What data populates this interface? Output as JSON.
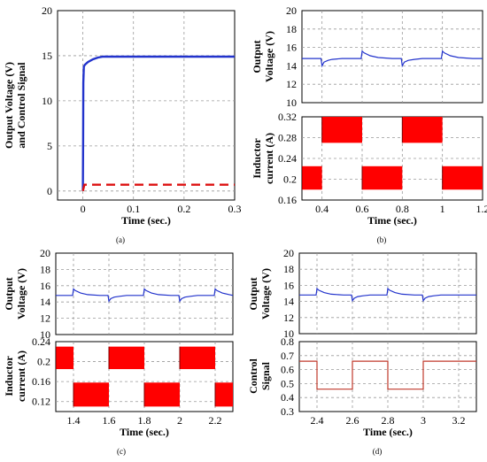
{
  "chart_data": [
    {
      "id": "a",
      "type": "line",
      "caption": "(a)",
      "xlabel": "Time (sec.)",
      "ylabel": "Output Voltage (V) and Control Signal",
      "xlim": [
        -0.05,
        0.3
      ],
      "ylim": [
        -1,
        20
      ],
      "xticks": [
        0,
        0.1,
        0.2,
        0.3
      ],
      "yticks": [
        0,
        5,
        10,
        15,
        20
      ],
      "grid": true,
      "series": [
        {
          "color": "#2233cc",
          "style": "solid",
          "x": [
            0,
            0.0005,
            0.001,
            0.002,
            0.004,
            0.006,
            0.01,
            0.02,
            0.03,
            0.04,
            0.3
          ],
          "y": [
            0,
            6,
            12,
            13.8,
            14.0,
            14.1,
            14.3,
            14.6,
            14.8,
            14.9,
            14.9
          ]
        },
        {
          "color": "#dd1111",
          "style": "dashed",
          "x": [
            0,
            0.003,
            0.3
          ],
          "y": [
            0,
            0.7,
            0.7
          ]
        }
      ]
    },
    {
      "id": "b-top",
      "type": "line",
      "ylabel": "Output Voltage (V)",
      "xlim": [
        0.3,
        1.2
      ],
      "ylim": [
        10,
        20
      ],
      "yticks": [
        10,
        12,
        14,
        16,
        18,
        20
      ],
      "xticks": [
        0.4,
        0.6,
        0.8,
        1.0,
        1.2
      ],
      "grid": true,
      "series": [
        {
          "color": "#2233cc",
          "x": [
            0.3,
            0.395,
            0.4,
            0.41,
            0.43,
            0.45,
            0.5,
            0.595,
            0.6,
            0.61,
            0.64,
            0.68,
            0.75,
            0.795,
            0.8,
            0.81,
            0.83,
            0.86,
            0.9,
            0.995,
            1.0,
            1.01,
            1.04,
            1.08,
            1.15,
            1.2
          ],
          "y": [
            14.8,
            14.8,
            14.0,
            14.4,
            14.6,
            14.7,
            14.8,
            14.8,
            15.6,
            15.4,
            15.1,
            14.9,
            14.8,
            14.8,
            14.0,
            14.4,
            14.6,
            14.7,
            14.8,
            14.8,
            15.6,
            15.4,
            15.1,
            14.9,
            14.8,
            14.8
          ]
        }
      ]
    },
    {
      "id": "b-bottom",
      "type": "area",
      "caption": "(b)",
      "xlabel": "Time (sec.)",
      "ylabel": "Inductor current (A)",
      "xlim": [
        0.3,
        1.2
      ],
      "ylim": [
        0.16,
        0.32
      ],
      "xticks": [
        0.4,
        0.6,
        0.8,
        1,
        1.2
      ],
      "yticks": [
        0.16,
        0.2,
        0.24,
        0.28,
        0.32
      ],
      "grid": true,
      "bands": [
        {
          "x0": 0.3,
          "x1": 0.4,
          "low": 0.18,
          "high": 0.225
        },
        {
          "x0": 0.4,
          "x1": 0.6,
          "low": 0.27,
          "high": 0.32
        },
        {
          "x0": 0.6,
          "x1": 0.8,
          "low": 0.18,
          "high": 0.225
        },
        {
          "x0": 0.8,
          "x1": 1.0,
          "low": 0.27,
          "high": 0.32
        },
        {
          "x0": 1.0,
          "x1": 1.2,
          "low": 0.18,
          "high": 0.225
        }
      ],
      "color": "#ff0000"
    },
    {
      "id": "c-top",
      "type": "line",
      "ylabel": "Output Voltage (V)",
      "xlim": [
        1.3,
        2.3
      ],
      "ylim": [
        10,
        20
      ],
      "yticks": [
        10,
        12,
        14,
        16,
        18,
        20
      ],
      "xticks": [
        1.4,
        1.6,
        1.8,
        2.0,
        2.2
      ],
      "grid": true,
      "series": [
        {
          "color": "#2233cc",
          "x": [
            1.3,
            1.395,
            1.4,
            1.41,
            1.44,
            1.48,
            1.55,
            1.595,
            1.6,
            1.61,
            1.63,
            1.66,
            1.7,
            1.795,
            1.8,
            1.81,
            1.84,
            1.88,
            1.95,
            1.995,
            2.0,
            2.01,
            2.03,
            2.06,
            2.1,
            2.195,
            2.2,
            2.21,
            2.24,
            2.28,
            2.3
          ],
          "y": [
            14.8,
            14.8,
            15.6,
            15.4,
            15.1,
            14.9,
            14.8,
            14.8,
            14.1,
            14.4,
            14.6,
            14.7,
            14.8,
            14.8,
            15.6,
            15.4,
            15.1,
            14.9,
            14.8,
            14.8,
            14.1,
            14.4,
            14.6,
            14.7,
            14.8,
            14.8,
            15.6,
            15.4,
            15.1,
            14.9,
            14.8
          ]
        }
      ]
    },
    {
      "id": "c-bottom",
      "type": "area",
      "caption": "(c)",
      "xlabel": "Time (sec.)",
      "ylabel": "Inductor current (A)",
      "xlim": [
        1.3,
        2.3
      ],
      "ylim": [
        0.1,
        0.24
      ],
      "xticks": [
        1.4,
        1.6,
        1.8,
        2,
        2.2
      ],
      "yticks": [
        0.12,
        0.16,
        0.2,
        0.24
      ],
      "grid": true,
      "bands": [
        {
          "x0": 1.3,
          "x1": 1.4,
          "low": 0.185,
          "high": 0.23
        },
        {
          "x0": 1.4,
          "x1": 1.6,
          "low": 0.11,
          "high": 0.158
        },
        {
          "x0": 1.6,
          "x1": 1.8,
          "low": 0.185,
          "high": 0.23
        },
        {
          "x0": 1.8,
          "x1": 2.0,
          "low": 0.11,
          "high": 0.158
        },
        {
          "x0": 2.0,
          "x1": 2.2,
          "low": 0.185,
          "high": 0.23
        },
        {
          "x0": 2.2,
          "x1": 2.3,
          "low": 0.11,
          "high": 0.158
        }
      ],
      "color": "#ff0000"
    },
    {
      "id": "d-top",
      "type": "line",
      "ylabel": "Output Voltage (V)",
      "xlim": [
        2.3,
        3.3
      ],
      "ylim": [
        10,
        20
      ],
      "yticks": [
        10,
        12,
        14,
        16,
        18,
        20
      ],
      "xticks": [
        2.4,
        2.6,
        2.8,
        3.0,
        3.2
      ],
      "grid": true,
      "series": [
        {
          "color": "#2233cc",
          "x": [
            2.3,
            2.395,
            2.4,
            2.41,
            2.44,
            2.48,
            2.55,
            2.595,
            2.6,
            2.61,
            2.63,
            2.66,
            2.7,
            2.795,
            2.8,
            2.81,
            2.84,
            2.88,
            2.95,
            2.995,
            3.0,
            3.01,
            3.03,
            3.06,
            3.1,
            3.3
          ],
          "y": [
            14.8,
            14.8,
            15.6,
            15.4,
            15.1,
            14.9,
            14.8,
            14.8,
            14.1,
            14.4,
            14.6,
            14.7,
            14.8,
            14.8,
            15.6,
            15.4,
            15.1,
            14.9,
            14.8,
            14.8,
            14.1,
            14.4,
            14.6,
            14.7,
            14.8,
            14.8
          ]
        }
      ]
    },
    {
      "id": "d-bottom",
      "type": "line",
      "caption": "(d)",
      "xlabel": "Time (sec.)",
      "ylabel": "Control Signal",
      "xlim": [
        2.3,
        3.3
      ],
      "ylim": [
        0.3,
        0.8
      ],
      "xticks": [
        2.4,
        2.6,
        2.8,
        3,
        3.2
      ],
      "yticks": [
        0.3,
        0.4,
        0.5,
        0.6,
        0.7,
        0.8
      ],
      "grid": true,
      "series": [
        {
          "color": "#c0392b",
          "x": [
            2.3,
            2.4,
            2.4,
            2.6,
            2.6,
            2.8,
            2.8,
            3.0,
            3.0,
            3.3
          ],
          "y": [
            0.66,
            0.66,
            0.46,
            0.46,
            0.66,
            0.66,
            0.46,
            0.46,
            0.66,
            0.66
          ]
        }
      ]
    }
  ]
}
